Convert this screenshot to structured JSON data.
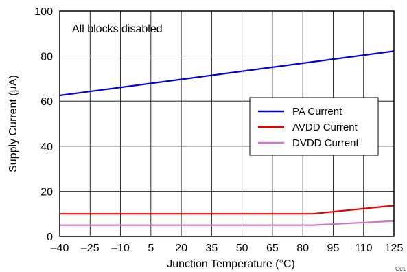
{
  "chart_data": {
    "type": "line",
    "title": "",
    "xlabel": "Junction Temperature (°C)",
    "ylabel": "Supply Current (µA)",
    "xlim": [
      -40,
      125
    ],
    "ylim": [
      0,
      100
    ],
    "x_ticks": [
      -40,
      -25,
      -10,
      5,
      20,
      35,
      50,
      65,
      80,
      95,
      110,
      125
    ],
    "x_tick_labels": [
      "–40",
      "–25",
      "–10",
      "5",
      "20",
      "35",
      "50",
      "65",
      "80",
      "95",
      "110",
      "125"
    ],
    "y_ticks": [
      0,
      20,
      40,
      60,
      80,
      100
    ],
    "y_tick_labels": [
      "0",
      "20",
      "40",
      "60",
      "80",
      "100"
    ],
    "grid": true,
    "legend_position": "center-right",
    "annotation": "All blocks disabled",
    "figure_id": "G01",
    "series": [
      {
        "name": "PA Current",
        "color": "#0000dd",
        "x": [
          -40,
          125
        ],
        "y": [
          62.5,
          82.2
        ]
      },
      {
        "name": "AVDD Current",
        "color": "#ee0000",
        "x": [
          -40,
          85,
          125
        ],
        "y": [
          10.0,
          10.0,
          13.6
        ]
      },
      {
        "name": "DVDD Current",
        "color": "#cc77cc",
        "x": [
          -40,
          85,
          125
        ],
        "y": [
          5.0,
          5.0,
          6.8
        ]
      }
    ]
  }
}
